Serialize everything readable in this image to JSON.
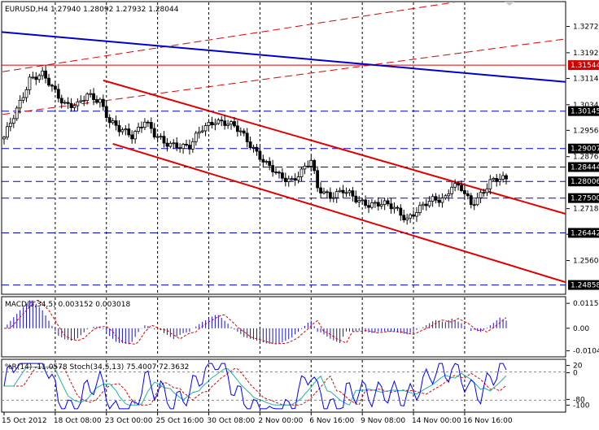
{
  "header": {
    "symbol": "EURUSD,H4",
    "ohlc": "1.27940 1.28092 1.27932 1.28044"
  },
  "price_axis": {
    "labels": [
      "1.32720",
      "1.31920",
      "1.31140",
      "1.30340",
      "1.29560",
      "1.28760",
      "1.27180",
      "1.26400",
      "1.25600"
    ],
    "values": [
      1.3272,
      1.3192,
      1.3114,
      1.3034,
      1.2956,
      1.2876,
      1.2718,
      1.264,
      1.256
    ],
    "ylim": [
      1.246,
      1.3345
    ]
  },
  "level_tags": [
    {
      "value": 1.31544,
      "label": "1.31544",
      "bg": "#d40000",
      "fg": "#ffffff"
    },
    {
      "value": 1.30145,
      "label": "1.30145",
      "bg": "#000000",
      "fg": "#ffffff"
    },
    {
      "value": 1.29007,
      "label": "1.29007",
      "bg": "#000000",
      "fg": "#ffffff"
    },
    {
      "value": 1.28444,
      "label": "1.28444",
      "bg": "#000000",
      "fg": "#ffffff"
    },
    {
      "value": 1.28006,
      "label": "1.28006",
      "bg": "#000000",
      "fg": "#ffffff"
    },
    {
      "value": 1.275,
      "label": "1.27500",
      "bg": "#000000",
      "fg": "#ffffff"
    },
    {
      "value": 1.26442,
      "label": "1.26442",
      "bg": "#000000",
      "fg": "#ffffff"
    },
    {
      "value": 1.24858,
      "label": "1.24858",
      "bg": "#000000",
      "fg": "#ffffff"
    }
  ],
  "macd": {
    "title": "MACD(5,34,5) 0.003152 0.003018",
    "axis_labels": [
      "0.01155",
      "0.00",
      "-0.01047"
    ],
    "axis_values": [
      0.01155,
      0.0,
      -0.01047
    ],
    "ylim": [
      -0.0125,
      0.0135
    ]
  },
  "osc": {
    "title": "%R(14) -11.0578  Stoch(34,5,13) 75.4007 72.3632",
    "axis_labels": [
      "20",
      "0",
      "-80",
      "-100"
    ],
    "axis_values": [
      20,
      0,
      -80,
      -100
    ]
  },
  "time_axis": {
    "labels": [
      "15 Oct 2012",
      "18 Oct 08:00",
      "23 Oct 00:00",
      "25 Oct 16:00",
      "30 Oct 08:00",
      "2 Nov 00:00",
      "6 Nov 16:00",
      "9 Nov 08:00",
      "14 Nov 00:00",
      "16 Nov 16:00"
    ],
    "bar_index": [
      0,
      16,
      32,
      48,
      64,
      80,
      96,
      112,
      128,
      144
    ]
  },
  "colors": {
    "candle_up": "#ffffff",
    "candle_down": "#000000",
    "channel": "#e00000",
    "trendline": "#0000c8",
    "h_dashed": "#0000c8",
    "red_level": "#e00000",
    "macd_hist": "#1414d2",
    "macd_signal": "#e00000",
    "wpr": "#0000ff",
    "stoch_main": "#20b2aa",
    "stoch_signal": "#e00000"
  },
  "chart_data": {
    "type": "candlestick",
    "title": "EURUSD,H4",
    "anchors": [
      [
        0,
        1.293
      ],
      [
        4,
        1.302
      ],
      [
        8,
        1.3115
      ],
      [
        12,
        1.3122
      ],
      [
        15,
        1.3085
      ],
      [
        19,
        1.304
      ],
      [
        23,
        1.303
      ],
      [
        26,
        1.306
      ],
      [
        30,
        1.305
      ],
      [
        33,
        1.2985
      ],
      [
        36,
        1.2955
      ],
      [
        40,
        1.294
      ],
      [
        44,
        1.299
      ],
      [
        47,
        1.294
      ],
      [
        50,
        1.2915
      ],
      [
        54,
        1.2915
      ],
      [
        58,
        1.2905
      ],
      [
        62,
        1.296
      ],
      [
        66,
        1.299
      ],
      [
        70,
        1.2975
      ],
      [
        74,
        1.295
      ],
      [
        78,
        1.2905
      ],
      [
        82,
        1.285
      ],
      [
        86,
        1.2815
      ],
      [
        90,
        1.2808
      ],
      [
        93,
        1.283
      ],
      [
        96,
        1.286
      ],
      [
        98,
        1.278
      ],
      [
        102,
        1.276
      ],
      [
        106,
        1.277
      ],
      [
        110,
        1.2745
      ],
      [
        114,
        1.2735
      ],
      [
        118,
        1.273
      ],
      [
        122,
        1.272
      ],
      [
        126,
        1.269
      ],
      [
        130,
        1.2715
      ],
      [
        134,
        1.2745
      ],
      [
        138,
        1.2755
      ],
      [
        140,
        1.279
      ],
      [
        143,
        1.2775
      ],
      [
        146,
        1.273
      ],
      [
        149,
        1.2765
      ],
      [
        152,
        1.28
      ],
      [
        155,
        1.2805
      ],
      [
        157,
        1.2804
      ]
    ],
    "count": 158,
    "horizontal_levels": [
      1.30145,
      1.29007,
      1.28444,
      1.28006,
      1.275,
      1.26442,
      1.24858
    ],
    "red_level": 1.31544,
    "trendline": {
      "from": [
        -4,
        1.3258
      ],
      "to": [
        177,
        1.3102
      ]
    },
    "channel_upper": {
      "from": [
        31,
        1.3108
      ],
      "to": [
        177,
        1.2698
      ]
    },
    "channel_lower": {
      "from": [
        34,
        1.2915
      ],
      "to": [
        177,
        1.249
      ]
    },
    "dashed_channel_upper": {
      "from": [
        -4,
        1.3
      ],
      "to": [
        177,
        1.3236
      ]
    },
    "dashed_channel_lower": {
      "from": [
        -4,
        1.3129
      ],
      "to": [
        177,
        1.34
      ]
    }
  }
}
